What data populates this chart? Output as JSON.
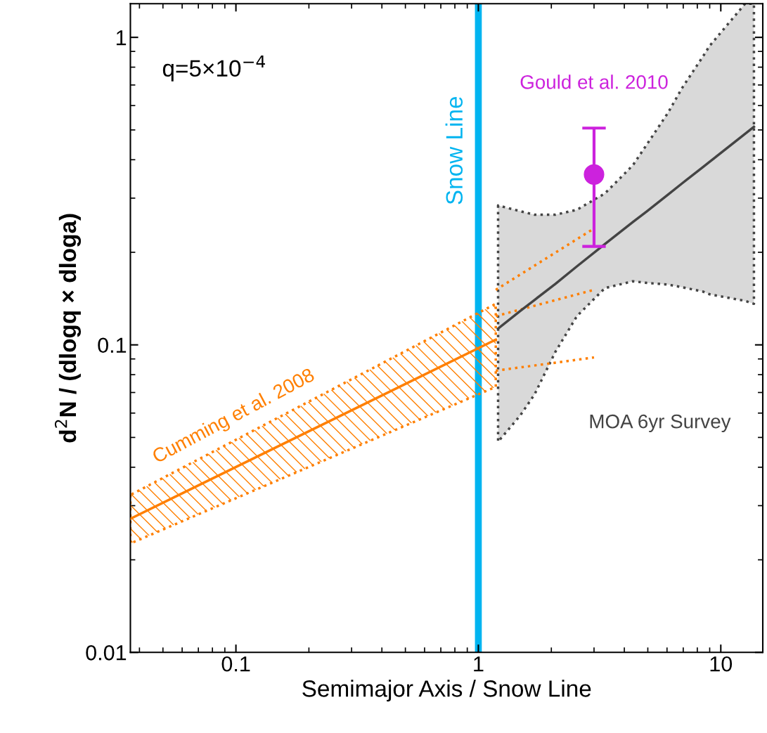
{
  "chart_data": {
    "type": "line",
    "xlabel": "Semimajor Axis / Snow Line",
    "ylabel": "d$^{2}$N / (dlogq × dloga)",
    "log": "xy",
    "xlim": [
      0.0367,
      14.9
    ],
    "ylim": [
      0.01,
      1.287
    ],
    "xticks": [
      0.1,
      1,
      10
    ],
    "yticks": [
      0.01,
      0.1,
      1
    ],
    "grid": false,
    "legend": false,
    "annotations": [
      "q=5×10$^{−4}$"
    ],
    "ref_lines": [
      {
        "axis": "x",
        "value": 1,
        "label": "Snow Line",
        "color": "#00b4f0",
        "line_style": "solid"
      }
    ],
    "series": [
      {
        "name": "Cumming et al. 2008",
        "type": "line",
        "color": "#ff7f00",
        "line_style": "solid",
        "x": [
          0.0367,
          1.18
        ],
        "values": [
          0.0272,
          0.104
        ],
        "lower": [
          0.0226,
          0.073
        ],
        "upper": [
          0.0325,
          0.136
        ]
      },
      {
        "color": "#ff7f00",
        "line_style": "dotted",
        "x": [
          1.18,
          3.0
        ],
        "values": [
          0.151,
          0.239
        ]
      },
      {
        "color": "#ff7f00",
        "line_style": "dotted",
        "x": [
          1.18,
          3.0
        ],
        "values": [
          0.124,
          0.151
        ]
      },
      {
        "color": "#ff7f00",
        "line_style": "dotted",
        "x": [
          1.18,
          3.0
        ],
        "values": [
          0.0824,
          0.091
        ]
      },
      {
        "name": "MOA 6yr Survey",
        "type": "line",
        "color": "#444444",
        "line_style": "solid",
        "x": [
          1.206,
          1.49,
          1.705,
          2.08,
          2.55,
          3.33,
          4.34,
          4.96,
          6.06,
          6.92,
          8.45,
          9.0,
          12.6,
          13.7
        ],
        "values": [
          0.113,
          0.129,
          0.14,
          0.158,
          0.18,
          0.213,
          0.251,
          0.272,
          0.308,
          0.335,
          0.379,
          0.394,
          0.486,
          0.512
        ],
        "lower": [
          0.0484,
          0.059,
          0.069,
          0.095,
          0.124,
          0.153,
          0.161,
          0.159,
          0.157,
          0.154,
          0.149,
          0.146,
          0.139,
          0.136
        ],
        "upper": [
          0.284,
          0.272,
          0.265,
          0.265,
          0.275,
          0.311,
          0.384,
          0.449,
          0.569,
          0.684,
          0.868,
          0.939,
          1.287,
          1.287
        ]
      },
      {
        "name": "Gould et al. 2010",
        "type": "scatter",
        "color": "#cc22dd",
        "marker": "circle",
        "x": [
          3.0
        ],
        "values": [
          0.358
        ],
        "errors": [
          [
            0.209,
            0.507
          ]
        ]
      }
    ]
  }
}
